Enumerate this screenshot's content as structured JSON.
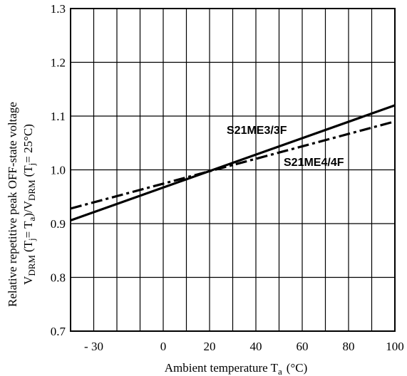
{
  "chart_data": {
    "type": "line",
    "xlabel": {
      "main": "Ambient temperature T",
      "sub": "a",
      "unit": "(°C)"
    },
    "ylabel": {
      "line1": "Relative repetitive peak OFF-state voltage",
      "line2": {
        "v1": "V",
        "sub1": "DRM",
        "t1": "(T",
        "s1": "j",
        "eq1": "= T",
        "s2": "a",
        "close1": ")/V",
        "sub2": "DRM",
        "t2": "(T",
        "s3": "j",
        "eq2": "= 25°C)"
      }
    },
    "xlim": [
      -40,
      100
    ],
    "ylim": [
      0.7,
      1.3
    ],
    "x_ticks": [
      -30,
      0,
      20,
      40,
      60,
      80,
      100
    ],
    "x_tick_labels": [
      "- 30",
      "0",
      "20",
      "40",
      "60",
      "80",
      "100"
    ],
    "y_ticks": [
      0.7,
      0.8,
      0.9,
      1.0,
      1.1,
      1.2,
      1.3
    ],
    "y_tick_labels": [
      "0.7",
      "0.8",
      "0.9",
      "1.0",
      "1.1",
      "1.2",
      "1.3"
    ],
    "grid": true,
    "series": [
      {
        "name": "S21ME3/3F",
        "style": "solid",
        "x": [
          -40,
          100
        ],
        "y": [
          0.906,
          1.12
        ]
      },
      {
        "name": "S21ME4/4F",
        "style": "dash-dot",
        "x": [
          -40,
          100
        ],
        "y": [
          0.928,
          1.09
        ]
      }
    ]
  }
}
